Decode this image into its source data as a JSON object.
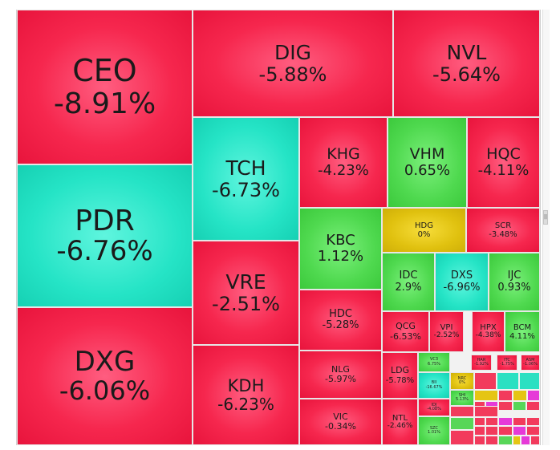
{
  "chart_data": {
    "type": "treemap",
    "title": "",
    "items": [
      {
        "ticker": "CEO",
        "change": "-8.91%",
        "value": -8.91,
        "color": "red"
      },
      {
        "ticker": "DIG",
        "change": "-5.88%",
        "value": -5.88,
        "color": "red"
      },
      {
        "ticker": "NVL",
        "change": "-5.64%",
        "value": -5.64,
        "color": "red"
      },
      {
        "ticker": "PDR",
        "change": "-6.76%",
        "value": -6.76,
        "color": "cyan"
      },
      {
        "ticker": "TCH",
        "change": "-6.73%",
        "value": -6.73,
        "color": "cyan"
      },
      {
        "ticker": "KHG",
        "change": "-4.23%",
        "value": -4.23,
        "color": "red"
      },
      {
        "ticker": "VHM",
        "change": "0.65%",
        "value": 0.65,
        "color": "green"
      },
      {
        "ticker": "HQC",
        "change": "-4.11%",
        "value": -4.11,
        "color": "red"
      },
      {
        "ticker": "HDG",
        "change": "0%",
        "value": 0,
        "color": "yellow"
      },
      {
        "ticker": "SCR",
        "change": "-3.48%",
        "value": -3.48,
        "color": "red"
      },
      {
        "ticker": "KBC",
        "change": "1.12%",
        "value": 1.12,
        "color": "green"
      },
      {
        "ticker": "IDC",
        "change": "2.9%",
        "value": 2.9,
        "color": "green"
      },
      {
        "ticker": "DXS",
        "change": "-6.96%",
        "value": -6.96,
        "color": "cyan"
      },
      {
        "ticker": "IJC",
        "change": "0.93%",
        "value": 0.93,
        "color": "green"
      },
      {
        "ticker": "VRE",
        "change": "-2.51%",
        "value": -2.51,
        "color": "red"
      },
      {
        "ticker": "HDC",
        "change": "-5.28%",
        "value": -5.28,
        "color": "red"
      },
      {
        "ticker": "QCG",
        "change": "-6.53%",
        "value": -6.53,
        "color": "red"
      },
      {
        "ticker": "VPI",
        "change": "-2.52%",
        "value": -2.52,
        "color": "red"
      },
      {
        "ticker": "HPX",
        "change": "-4.38%",
        "value": -4.38,
        "color": "red"
      },
      {
        "ticker": "BCM",
        "change": "4.11%",
        "value": 4.11,
        "color": "green"
      },
      {
        "ticker": "DXG",
        "change": "-6.06%",
        "value": -6.06,
        "color": "red"
      },
      {
        "ticker": "KDH",
        "change": "-6.23%",
        "value": -6.23,
        "color": "red"
      },
      {
        "ticker": "NLG",
        "change": "-5.97%",
        "value": -5.97,
        "color": "red"
      },
      {
        "ticker": "LDG",
        "change": "-5.78%",
        "value": -5.78,
        "color": "red"
      },
      {
        "ticker": "VIC",
        "change": "-0.34%",
        "value": -0.34,
        "color": "red"
      },
      {
        "ticker": "NTL",
        "change": "-2.46%",
        "value": -2.46,
        "color": "red"
      },
      {
        "ticker": "VC3",
        "change": "6.75%",
        "value": 6.75,
        "color": "green"
      },
      {
        "ticker": "HAR",
        "change": "-1.92%",
        "value": -1.92,
        "color": "red"
      },
      {
        "ticker": "ITC",
        "change": "-1.75%",
        "value": -1.75,
        "color": "red"
      },
      {
        "ticker": "ASM",
        "change": "-1.06%",
        "value": -1.06,
        "color": "red"
      },
      {
        "ticker": "BII",
        "change": "-16.67%",
        "value": -16.67,
        "color": "cyan"
      },
      {
        "ticker": "NRC",
        "change": "0%",
        "value": 0,
        "color": "yellow"
      },
      {
        "ticker": "SHI",
        "change": "5.13%",
        "value": 5.13,
        "color": "green"
      },
      {
        "ticker": "IDJ",
        "change": "-4.08%",
        "value": -4.08,
        "color": "red"
      },
      {
        "ticker": "SZC",
        "change": "1.01%",
        "value": 1.01,
        "color": "green"
      }
    ],
    "colors": {
      "red": "#f6274e",
      "green": "#4fd94f",
      "cyan": "#25e4c6",
      "yellow": "#e0c10f",
      "magenta": "#e72ad8"
    },
    "small_tile_label": "..."
  },
  "scrollbar": {
    "thumb_label": "||"
  }
}
